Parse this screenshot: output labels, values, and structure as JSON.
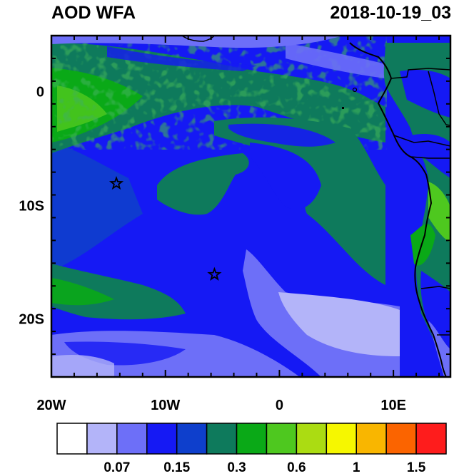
{
  "header": {
    "title": "AOD WFA",
    "datetime": "2018-10-19_03"
  },
  "map": {
    "lon_range": [
      -20,
      15
    ],
    "lat_range": [
      -25,
      5
    ],
    "x_ticks": [
      {
        "lon": -20,
        "label": "20W"
      },
      {
        "lon": -10,
        "label": "10W"
      },
      {
        "lon": 0,
        "label": "0"
      },
      {
        "lon": 10,
        "label": "10E"
      }
    ],
    "y_ticks": [
      {
        "lat": 0,
        "label": "0"
      },
      {
        "lat": -10,
        "label": "10S"
      },
      {
        "lat": -20,
        "label": "20S"
      }
    ],
    "markers": [
      {
        "type": "star",
        "lon": -14.3,
        "lat": -8.0
      },
      {
        "type": "star",
        "lon": -5.7,
        "lat": -16.0
      }
    ],
    "colors": {
      "very_low": "#b3b4f9",
      "low": "#6d6ff8",
      "mid": "#1519f4",
      "mid_dark": "#0e3fcc",
      "teal": "#0e7a5c",
      "green": "#0aa917",
      "light_green": "#4ec81f"
    }
  },
  "colorbar": {
    "colors": [
      "#ffffff",
      "#b3b4f9",
      "#6d6ff8",
      "#1519f4",
      "#0e3fcc",
      "#0e7a5c",
      "#0aa917",
      "#4ec81f",
      "#abdc12",
      "#f6f700",
      "#f9b600",
      "#fb6400",
      "#fe1c1c"
    ],
    "labels": [
      {
        "text": "0.07",
        "after_box": 2
      },
      {
        "text": "0.15",
        "after_box": 4
      },
      {
        "text": "0.3",
        "after_box": 6
      },
      {
        "text": "0.6",
        "after_box": 8
      },
      {
        "text": "1",
        "after_box": 10
      },
      {
        "text": "1.5",
        "after_box": 12
      }
    ]
  }
}
